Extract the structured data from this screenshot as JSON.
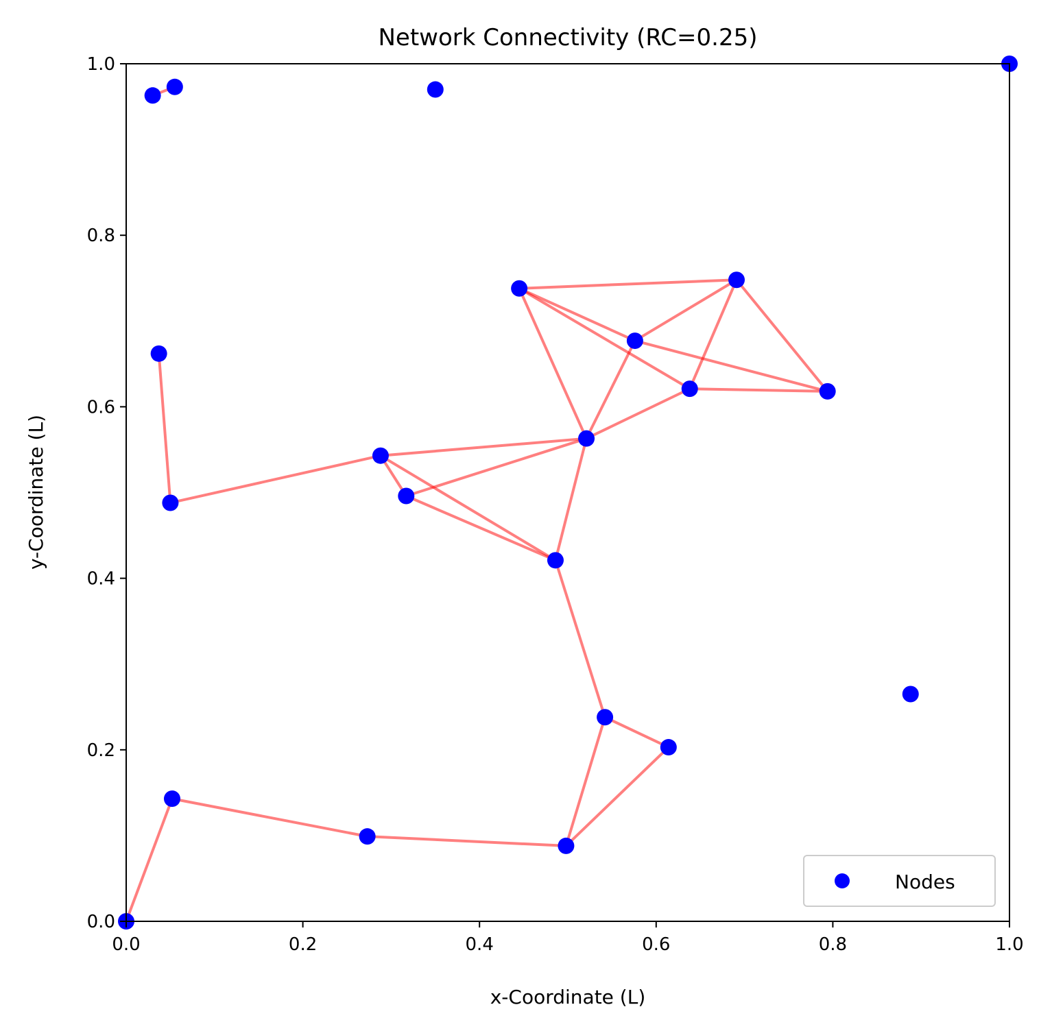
{
  "chart_data": {
    "type": "scatter",
    "title": "Network Connectivity (RC=0.25)",
    "xlabel": "x-Coordinate (L)",
    "ylabel": "y-Coordinate (L)",
    "xlim": [
      0,
      1
    ],
    "ylim": [
      0,
      1
    ],
    "xticks": [
      "0.0",
      "0.2",
      "0.4",
      "0.6",
      "0.8",
      "1.0"
    ],
    "yticks": [
      "0.0",
      "0.2",
      "0.4",
      "0.6",
      "0.8",
      "1.0"
    ],
    "grid": false,
    "legend": {
      "placement": "lower-right",
      "entries": [
        "Nodes"
      ]
    },
    "colors": {
      "nodes": "#0000ff",
      "edges": "#ff0000",
      "edge_alpha": 0.5
    },
    "nodes": [
      {
        "x": 0.0,
        "y": 0.0
      },
      {
        "x": 0.03,
        "y": 0.963
      },
      {
        "x": 0.055,
        "y": 0.973
      },
      {
        "x": 0.35,
        "y": 0.97
      },
      {
        "x": 1.0,
        "y": 1.0
      },
      {
        "x": 0.037,
        "y": 0.662
      },
      {
        "x": 0.05,
        "y": 0.488
      },
      {
        "x": 0.288,
        "y": 0.543
      },
      {
        "x": 0.317,
        "y": 0.496
      },
      {
        "x": 0.445,
        "y": 0.738
      },
      {
        "x": 0.521,
        "y": 0.563
      },
      {
        "x": 0.576,
        "y": 0.677
      },
      {
        "x": 0.638,
        "y": 0.621
      },
      {
        "x": 0.691,
        "y": 0.748
      },
      {
        "x": 0.794,
        "y": 0.618
      },
      {
        "x": 0.486,
        "y": 0.421
      },
      {
        "x": 0.542,
        "y": 0.238
      },
      {
        "x": 0.614,
        "y": 0.203
      },
      {
        "x": 0.888,
        "y": 0.265
      },
      {
        "x": 0.052,
        "y": 0.143
      },
      {
        "x": 0.273,
        "y": 0.099
      },
      {
        "x": 0.498,
        "y": 0.088
      }
    ],
    "edges": [
      [
        1,
        2
      ],
      [
        5,
        6
      ],
      [
        6,
        7
      ],
      [
        7,
        8
      ],
      [
        7,
        10
      ],
      [
        7,
        15
      ],
      [
        8,
        10
      ],
      [
        8,
        15
      ],
      [
        9,
        13
      ],
      [
        9,
        11
      ],
      [
        9,
        12
      ],
      [
        9,
        10
      ],
      [
        10,
        11
      ],
      [
        10,
        12
      ],
      [
        10,
        15
      ],
      [
        11,
        13
      ],
      [
        11,
        14
      ],
      [
        12,
        13
      ],
      [
        12,
        14
      ],
      [
        13,
        14
      ],
      [
        15,
        16
      ],
      [
        16,
        17
      ],
      [
        16,
        21
      ],
      [
        17,
        21
      ],
      [
        21,
        20
      ],
      [
        20,
        19
      ],
      [
        19,
        0
      ]
    ]
  }
}
